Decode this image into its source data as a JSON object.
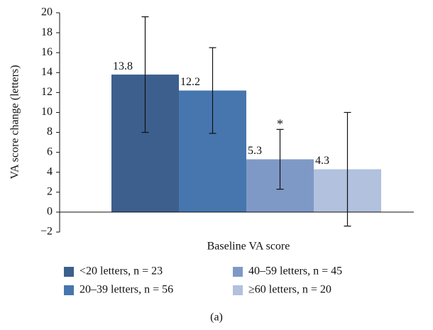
{
  "chart_data": {
    "type": "bar",
    "ylabel": "VA score change (letters)",
    "xlabel": "Baseline VA score",
    "caption": "(a)",
    "categories": [
      null
    ],
    "series": [
      {
        "name": "<20 letters, n = 23",
        "color": "#3c5f8e",
        "values": [
          13.8
        ],
        "errors": [
          5.8
        ]
      },
      {
        "name": "20–39 letters, n = 56",
        "color": "#4676ad",
        "values": [
          12.2
        ],
        "errors": [
          4.3
        ]
      },
      {
        "name": "40–59 letters, n = 45",
        "color": "#7f99c6",
        "values": [
          5.3
        ],
        "errors": [
          3.0
        ]
      },
      {
        "name": "≥60 letters, n = 20",
        "color": "#b1c1de",
        "values": [
          4.3
        ],
        "errors": [
          5.7
        ]
      }
    ],
    "annotations": [
      {
        "text": "*",
        "series": 2
      }
    ],
    "ylim": [
      -2,
      20
    ],
    "yticks": [
      {
        "value": -2,
        "label": "−2"
      },
      0,
      2,
      4,
      6,
      8,
      10,
      12,
      14,
      16,
      18,
      20
    ],
    "grid": false
  }
}
